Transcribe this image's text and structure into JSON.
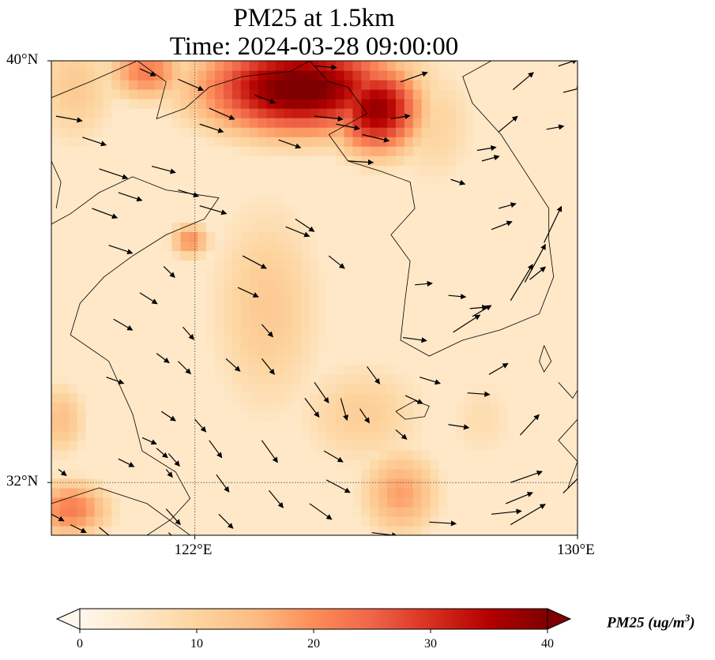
{
  "title": {
    "line1": "PM25 at 1.5km",
    "line2": "Time: 2024-03-28 09:00:00"
  },
  "map": {
    "extent": {
      "lon_min": 119,
      "lon_max": 130,
      "lat_min": 31,
      "lat_max": 40
    },
    "gridlines": {
      "lon": [
        122
      ],
      "lat": [
        32
      ],
      "style": "dotted"
    },
    "lat_ticks": [
      {
        "label": "40°N",
        "value": 40
      },
      {
        "label": "32°N",
        "value": 32
      }
    ],
    "lon_ticks": [
      {
        "label": "122°E",
        "value": 122
      },
      {
        "label": "130°E",
        "value": 130
      }
    ],
    "features": [
      "coastlines",
      "wind-vectors",
      "pm25-field"
    ]
  },
  "colorbar": {
    "label_main": "PM25 (ug/m",
    "label_sup": "3",
    "label_end": ")",
    "ticks": [
      "0",
      "10",
      "20",
      "30",
      "40"
    ],
    "min": 0,
    "max": 40,
    "extend": "both",
    "colormap": "OrRd",
    "colors": [
      "#fff7ec",
      "#fee8c8",
      "#fdd49e",
      "#fdbb84",
      "#fc8d59",
      "#ef6548",
      "#d7301f",
      "#b30000",
      "#7f0000"
    ]
  },
  "pm25_field": {
    "units": "ug/m3",
    "hotspots": [
      {
        "lon": 124.2,
        "lat": 39.5,
        "value": 42,
        "sx": 2.2,
        "sy": 0.95
      },
      {
        "lon": 125.8,
        "lat": 39.1,
        "value": 38,
        "sx": 1.0,
        "sy": 0.9
      },
      {
        "lon": 121.0,
        "lat": 39.8,
        "value": 22,
        "sx": 0.9,
        "sy": 0.6
      },
      {
        "lon": 119.5,
        "lat": 39.5,
        "value": 12,
        "sx": 1.0,
        "sy": 1.3
      },
      {
        "lon": 121.9,
        "lat": 36.6,
        "value": 20,
        "sx": 0.45,
        "sy": 0.35
      },
      {
        "lon": 119.4,
        "lat": 31.5,
        "value": 22,
        "sx": 0.9,
        "sy": 0.6
      },
      {
        "lon": 119.2,
        "lat": 33.2,
        "value": 14,
        "sx": 0.6,
        "sy": 0.8
      },
      {
        "lon": 126.3,
        "lat": 31.8,
        "value": 18,
        "sx": 0.9,
        "sy": 0.9
      },
      {
        "lon": 123.5,
        "lat": 35.3,
        "value": 12,
        "sx": 1.4,
        "sy": 2.4
      },
      {
        "lon": 125.5,
        "lat": 33.3,
        "value": 11,
        "sx": 1.6,
        "sy": 1.2
      },
      {
        "lon": 127.0,
        "lat": 38.8,
        "value": 10,
        "sx": 1.1,
        "sy": 1.4
      },
      {
        "lon": 128.0,
        "lat": 33.2,
        "value": 8,
        "sx": 0.9,
        "sy": 1.0
      }
    ],
    "background": 5
  },
  "wind_vectors": [
    {
      "lon": 119.1,
      "lat": 38.95,
      "dx": 33,
      "dy": 6
    },
    {
      "lon": 119.65,
      "lat": 38.55,
      "dx": 30,
      "dy": 10
    },
    {
      "lon": 120.0,
      "lat": 37.95,
      "dx": 36,
      "dy": 12
    },
    {
      "lon": 120.85,
      "lat": 39.85,
      "dx": 20,
      "dy": 9
    },
    {
      "lon": 121.65,
      "lat": 39.65,
      "dx": 32,
      "dy": 14
    },
    {
      "lon": 122.3,
      "lat": 39.1,
      "dx": 32,
      "dy": 14
    },
    {
      "lon": 122.1,
      "lat": 38.8,
      "dx": 30,
      "dy": 10
    },
    {
      "lon": 123.25,
      "lat": 39.35,
      "dx": 26,
      "dy": 10
    },
    {
      "lon": 123.75,
      "lat": 38.5,
      "dx": 28,
      "dy": 10
    },
    {
      "lon": 124.5,
      "lat": 39.9,
      "dx": 28,
      "dy": 2
    },
    {
      "lon": 124.5,
      "lat": 38.95,
      "dx": 36,
      "dy": 4
    },
    {
      "lon": 124.95,
      "lat": 38.8,
      "dx": 30,
      "dy": 6
    },
    {
      "lon": 125.2,
      "lat": 38.1,
      "dx": 32,
      "dy": 2
    },
    {
      "lon": 125.5,
      "lat": 38.6,
      "dx": 34,
      "dy": 8
    },
    {
      "lon": 126.1,
      "lat": 38.9,
      "dx": 24,
      "dy": -4
    },
    {
      "lon": 126.3,
      "lat": 39.6,
      "dx": 34,
      "dy": -12
    },
    {
      "lon": 121.1,
      "lat": 38.0,
      "dx": 30,
      "dy": 8
    },
    {
      "lon": 122.1,
      "lat": 37.25,
      "dx": 34,
      "dy": 10
    },
    {
      "lon": 121.65,
      "lat": 37.55,
      "dx": 26,
      "dy": 8
    },
    {
      "lon": 120.4,
      "lat": 37.5,
      "dx": 30,
      "dy": 10
    },
    {
      "lon": 120.2,
      "lat": 36.5,
      "dx": 30,
      "dy": 10
    },
    {
      "lon": 119.85,
      "lat": 37.2,
      "dx": 32,
      "dy": 12
    },
    {
      "lon": 123.9,
      "lat": 36.85,
      "dx": 30,
      "dy": 12
    },
    {
      "lon": 124.1,
      "lat": 37.0,
      "dx": 24,
      "dy": 16
    },
    {
      "lon": 123.0,
      "lat": 36.3,
      "dx": 30,
      "dy": 16
    },
    {
      "lon": 124.8,
      "lat": 36.3,
      "dx": 20,
      "dy": 16
    },
    {
      "lon": 122.9,
      "lat": 35.7,
      "dx": 26,
      "dy": 12
    },
    {
      "lon": 123.4,
      "lat": 35.0,
      "dx": 14,
      "dy": 16
    },
    {
      "lon": 121.35,
      "lat": 36.1,
      "dx": 14,
      "dy": 14
    },
    {
      "lon": 120.3,
      "lat": 35.1,
      "dx": 24,
      "dy": 14
    },
    {
      "lon": 120.85,
      "lat": 35.6,
      "dx": 22,
      "dy": 14
    },
    {
      "lon": 121.75,
      "lat": 34.95,
      "dx": 14,
      "dy": 16
    },
    {
      "lon": 121.65,
      "lat": 34.3,
      "dx": 16,
      "dy": 16
    },
    {
      "lon": 120.15,
      "lat": 34.0,
      "dx": 22,
      "dy": 8
    },
    {
      "lon": 121.2,
      "lat": 34.45,
      "dx": 16,
      "dy": 12
    },
    {
      "lon": 122.65,
      "lat": 34.35,
      "dx": 18,
      "dy": 16
    },
    {
      "lon": 123.4,
      "lat": 34.35,
      "dx": 16,
      "dy": 20
    },
    {
      "lon": 124.3,
      "lat": 33.6,
      "dx": 18,
      "dy": 24
    },
    {
      "lon": 124.5,
      "lat": 33.9,
      "dx": 18,
      "dy": 26
    },
    {
      "lon": 125.05,
      "lat": 33.6,
      "dx": 8,
      "dy": 28
    },
    {
      "lon": 125.45,
      "lat": 33.4,
      "dx": 12,
      "dy": 18
    },
    {
      "lon": 125.6,
      "lat": 34.2,
      "dx": 16,
      "dy": 22
    },
    {
      "lon": 126.2,
      "lat": 33.0,
      "dx": 14,
      "dy": 12
    },
    {
      "lon": 126.4,
      "lat": 33.65,
      "dx": 22,
      "dy": 10
    },
    {
      "lon": 126.7,
      "lat": 34.0,
      "dx": 26,
      "dy": 8
    },
    {
      "lon": 127.7,
      "lat": 33.7,
      "dx": 28,
      "dy": 2
    },
    {
      "lon": 127.3,
      "lat": 33.1,
      "dx": 26,
      "dy": 4
    },
    {
      "lon": 126.35,
      "lat": 34.75,
      "dx": 30,
      "dy": 4
    },
    {
      "lon": 126.6,
      "lat": 35.75,
      "dx": 22,
      "dy": -2
    },
    {
      "lon": 127.4,
      "lat": 34.85,
      "dx": 34,
      "dy": -22
    },
    {
      "lon": 127.75,
      "lat": 35.3,
      "dx": 22,
      "dy": -2
    },
    {
      "lon": 127.3,
      "lat": 35.55,
      "dx": 22,
      "dy": 2
    },
    {
      "lon": 127.8,
      "lat": 35.15,
      "dx": 24,
      "dy": -14
    },
    {
      "lon": 128.6,
      "lat": 35.45,
      "dx": 28,
      "dy": -46
    },
    {
      "lon": 129.0,
      "lat": 35.85,
      "dx": 20,
      "dy": -16
    },
    {
      "lon": 129.3,
      "lat": 36.55,
      "dx": 22,
      "dy": -46
    },
    {
      "lon": 128.9,
      "lat": 35.8,
      "dx": 26,
      "dy": -48
    },
    {
      "lon": 128.2,
      "lat": 36.8,
      "dx": 26,
      "dy": -10
    },
    {
      "lon": 128.35,
      "lat": 37.2,
      "dx": 22,
      "dy": -6
    },
    {
      "lon": 128.0,
      "lat": 38.1,
      "dx": 22,
      "dy": -6
    },
    {
      "lon": 128.35,
      "lat": 38.65,
      "dx": 24,
      "dy": -20
    },
    {
      "lon": 128.65,
      "lat": 39.45,
      "dx": 26,
      "dy": -22
    },
    {
      "lon": 129.35,
      "lat": 38.7,
      "dx": 22,
      "dy": -4
    },
    {
      "lon": 129.6,
      "lat": 39.9,
      "dx": 24,
      "dy": -8
    },
    {
      "lon": 127.35,
      "lat": 37.75,
      "dx": 18,
      "dy": 6
    },
    {
      "lon": 127.9,
      "lat": 38.3,
      "dx": 24,
      "dy": -4
    },
    {
      "lon": 129.7,
      "lat": 39.4,
      "dx": 24,
      "dy": -6
    },
    {
      "lon": 128.15,
      "lat": 34.05,
      "dx": 24,
      "dy": -14
    },
    {
      "lon": 128.6,
      "lat": 32.0,
      "dx": 40,
      "dy": -14
    },
    {
      "lon": 128.6,
      "lat": 31.2,
      "dx": 44,
      "dy": -26
    },
    {
      "lon": 128.5,
      "lat": 31.6,
      "dx": 34,
      "dy": -14
    },
    {
      "lon": 128.2,
      "lat": 31.4,
      "dx": 38,
      "dy": -4
    },
    {
      "lon": 128.8,
      "lat": 32.9,
      "dx": 24,
      "dy": -26
    },
    {
      "lon": 129.7,
      "lat": 31.8,
      "dx": 24,
      "dy": -24
    },
    {
      "lon": 126.9,
      "lat": 31.25,
      "dx": 34,
      "dy": 2
    },
    {
      "lon": 125.7,
      "lat": 31.05,
      "dx": 32,
      "dy": 4
    },
    {
      "lon": 124.4,
      "lat": 31.6,
      "dx": 28,
      "dy": 20
    },
    {
      "lon": 124.75,
      "lat": 32.05,
      "dx": 30,
      "dy": 16
    },
    {
      "lon": 124.7,
      "lat": 32.6,
      "dx": 24,
      "dy": 14
    },
    {
      "lon": 123.55,
      "lat": 31.85,
      "dx": 18,
      "dy": 22
    },
    {
      "lon": 123.4,
      "lat": 32.8,
      "dx": 20,
      "dy": 28
    },
    {
      "lon": 122.3,
      "lat": 32.8,
      "dx": 16,
      "dy": 22
    },
    {
      "lon": 122.5,
      "lat": 31.4,
      "dx": 18,
      "dy": 18
    },
    {
      "lon": 121.4,
      "lat": 31.5,
      "dx": 18,
      "dy": 20
    },
    {
      "lon": 121.3,
      "lat": 33.35,
      "dx": 18,
      "dy": 12
    },
    {
      "lon": 122.0,
      "lat": 33.2,
      "dx": 14,
      "dy": 16
    },
    {
      "lon": 121.45,
      "lat": 32.55,
      "dx": 14,
      "dy": 16
    },
    {
      "lon": 122.45,
      "lat": 32.15,
      "dx": 16,
      "dy": 22
    },
    {
      "lon": 121.45,
      "lat": 31.05,
      "dx": 20,
      "dy": 18
    },
    {
      "lon": 120.9,
      "lat": 32.85,
      "dx": 18,
      "dy": 8
    },
    {
      "lon": 121.2,
      "lat": 32.65,
      "dx": 14,
      "dy": 12
    },
    {
      "lon": 121.4,
      "lat": 32.25,
      "dx": 8,
      "dy": 10
    },
    {
      "lon": 120.4,
      "lat": 32.45,
      "dx": 20,
      "dy": 10
    },
    {
      "lon": 119.15,
      "lat": 32.25,
      "dx": 10,
      "dy": 8
    },
    {
      "lon": 119.4,
      "lat": 31.2,
      "dx": 20,
      "dy": 10
    },
    {
      "lon": 118.9,
      "lat": 31.45,
      "dx": 22,
      "dy": 12
    },
    {
      "lon": 120.0,
      "lat": 31.15,
      "dx": 22,
      "dy": 18
    }
  ]
}
